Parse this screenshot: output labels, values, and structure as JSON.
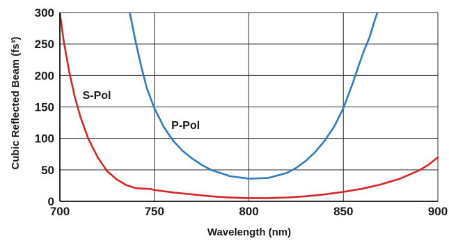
{
  "chart_data": {
    "type": "line",
    "title": "",
    "xlabel": "Wavelength (nm)",
    "ylabel": "Cubic Reflected Beam (fs³)",
    "xlim": [
      700,
      900
    ],
    "ylim": [
      0,
      300
    ],
    "xticks": [
      "700",
      "750",
      "800",
      "850",
      "900"
    ],
    "yticks": [
      "0",
      "50",
      "100",
      "150",
      "200",
      "250",
      "300"
    ],
    "grid": true,
    "series": [
      {
        "name": "S-Pol",
        "color": "#d62728",
        "x": [
          700,
          702,
          705,
          708,
          711,
          715,
          720,
          725,
          730,
          735,
          740,
          745,
          748,
          750,
          760,
          770,
          780,
          790,
          800,
          810,
          820,
          830,
          840,
          850,
          860,
          870,
          880,
          890,
          895,
          900
        ],
        "y": [
          300,
          255,
          205,
          165,
          133,
          100,
          70,
          48,
          35,
          26,
          21,
          20,
          19.5,
          18,
          14,
          11,
          8,
          6,
          5,
          5,
          6,
          8,
          11,
          15,
          20,
          27,
          36,
          49,
          58,
          70
        ]
      },
      {
        "name": "P-Pol",
        "color": "#2e7bc0",
        "x": [
          737,
          740,
          743,
          746,
          750,
          755,
          760,
          765,
          770,
          775,
          780,
          790,
          800,
          810,
          820,
          825,
          830,
          835,
          840,
          845,
          850,
          855,
          858,
          861,
          864,
          866,
          868
        ],
        "y": [
          300,
          255,
          215,
          180,
          148,
          118,
          96,
          80,
          68,
          58,
          50,
          40,
          36,
          37,
          45,
          53,
          64,
          78,
          96,
          118,
          148,
          188,
          215,
          240,
          262,
          282,
          300
        ]
      }
    ],
    "annotations": [
      {
        "text": "S-Pol",
        "x": 712,
        "y": 163
      },
      {
        "text": "P-Pol",
        "x": 759,
        "y": 115
      }
    ]
  }
}
